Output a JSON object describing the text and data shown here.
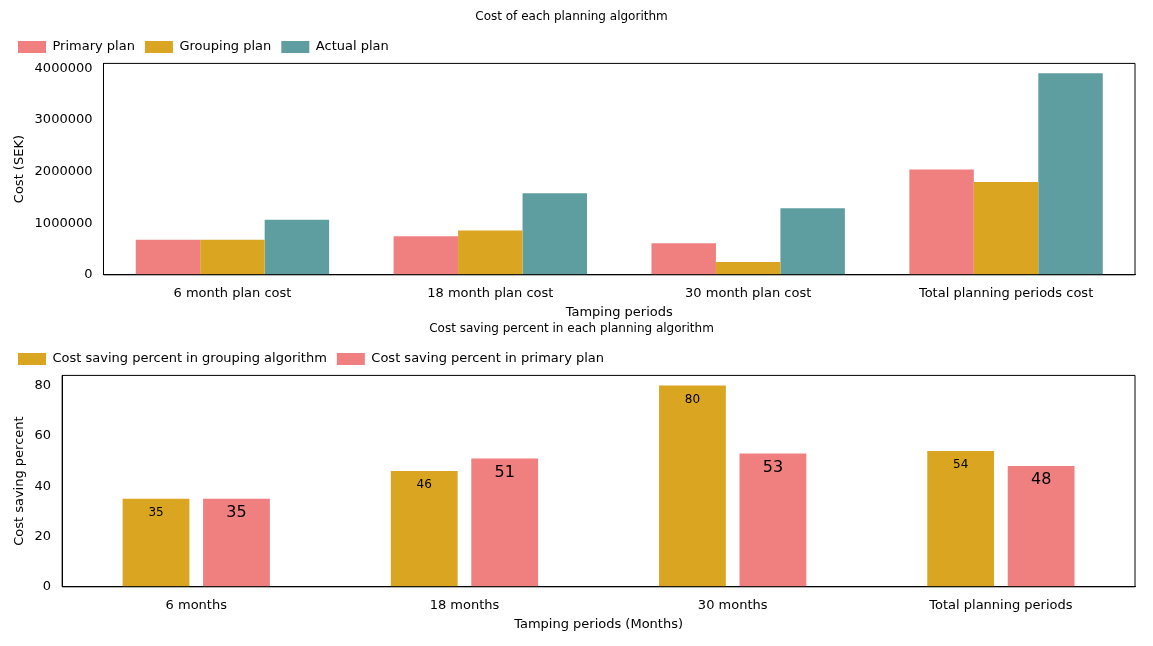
{
  "chart_data": [
    {
      "type": "bar",
      "title": "Cost of each planning algorithm",
      "xlabel": "Tamping periods",
      "ylabel": "Cost (SEK)",
      "categories": [
        "6 month plan cost",
        "18 month plan cost",
        "30 month plan cost",
        "Total planning periods cost"
      ],
      "series": [
        {
          "name": "Primary plan",
          "color": "#f08080",
          "values": [
            680000,
            750000,
            610000,
            2040000
          ]
        },
        {
          "name": "Grouping plan",
          "color": "#daa520",
          "values": [
            680000,
            860000,
            250000,
            1800000
          ]
        },
        {
          "name": "Actual plan",
          "color": "#5f9ea0",
          "values": [
            1070000,
            1580000,
            1290000,
            3910000
          ]
        }
      ],
      "ylim": [
        0,
        4100000
      ],
      "yticks": [
        0,
        1000000,
        2000000,
        3000000,
        4000000
      ],
      "grid": false,
      "legend": "top left"
    },
    {
      "type": "bar",
      "title": "Cost saving percent in each planning algorithm",
      "xlabel": "Tamping periods (Months)",
      "ylabel": "Cost saving percent",
      "categories": [
        "6 months",
        "18 months",
        "30 months",
        "Total planning periods"
      ],
      "series": [
        {
          "name": "Cost saving percent in grouping algorithm",
          "color": "#daa520",
          "values": [
            35,
            46,
            80,
            54
          ]
        },
        {
          "name": "Cost saving percent in primary plan",
          "color": "#f08080",
          "values": [
            35,
            51,
            53,
            48
          ]
        }
      ],
      "ylim": [
        0,
        84
      ],
      "yticks": [
        0,
        20,
        40,
        60,
        80
      ],
      "grid": false,
      "legend": "top left",
      "data_labels": true
    }
  ]
}
